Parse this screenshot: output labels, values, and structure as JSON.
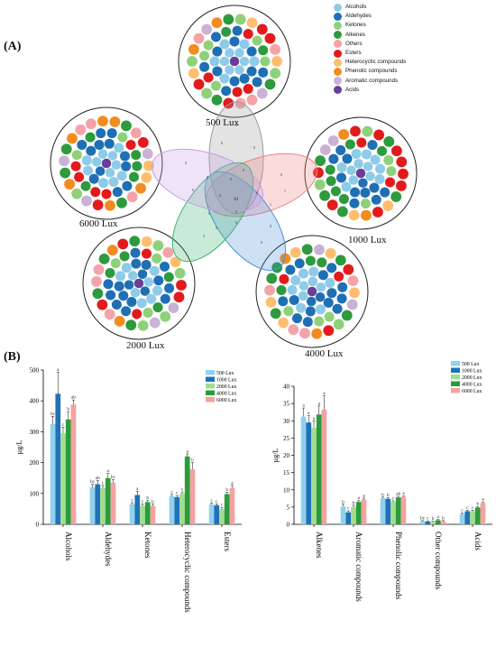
{
  "panel_a_label": "(A)",
  "panel_b_label": "(B)",
  "legend_a": [
    {
      "name": "Alcohols",
      "color": "#8ecbe8"
    },
    {
      "name": "Aldehydes",
      "color": "#1f6fb4"
    },
    {
      "name": "Ketones",
      "color": "#8fd17a"
    },
    {
      "name": "Alkenes",
      "color": "#2e9a3e"
    },
    {
      "name": "Others",
      "color": "#f4a3a8"
    },
    {
      "name": "Esters",
      "color": "#e31a1c"
    },
    {
      "name": "Heterocyclic compounds",
      "color": "#fdbf6f"
    },
    {
      "name": "Phenolic compounds",
      "color": "#f28c1e"
    },
    {
      "name": "Aromatic compounds",
      "color": "#cab2d6"
    },
    {
      "name": "Acids",
      "color": "#6a3d9a"
    }
  ],
  "clusters": [
    {
      "label": "500 Lux"
    },
    {
      "label": "1000 Lux"
    },
    {
      "label": "4000 Lux"
    },
    {
      "label": "2000 Lux"
    },
    {
      "label": "6000 Lux"
    }
  ],
  "venn": {
    "center": "61",
    "numbers": [
      "0",
      "1",
      "0",
      "3",
      "2",
      "0",
      "1",
      "0",
      "0",
      "0",
      "0",
      "0",
      "0",
      "0",
      "0",
      "0",
      "0",
      "0",
      "0",
      "0"
    ]
  },
  "chart_data": [
    {
      "type": "bar",
      "ylabel": "µg/L",
      "ylim": [
        0,
        500
      ],
      "yticks": [
        0,
        100,
        200,
        300,
        400,
        500
      ],
      "categories": [
        "Alcohols",
        "Aldehydes",
        "Ketones",
        "Heterocyclic compounds",
        "Esters"
      ],
      "series": [
        {
          "name": "500 Lux",
          "color": "#92d0ec",
          "values": [
            325,
            120,
            65,
            92,
            65
          ],
          "errors": [
            25,
            10,
            5,
            5,
            4
          ],
          "letters": [
            "bc",
            "bc",
            "c",
            "c",
            "c"
          ]
        },
        {
          "name": "1000 Lux",
          "color": "#1f72b8",
          "values": [
            423,
            130,
            95,
            88,
            62
          ],
          "errors": [
            70,
            12,
            12,
            5,
            4
          ],
          "letters": [
            "a",
            "ab",
            "a",
            "c",
            "c"
          ]
        },
        {
          "name": "2000 Lux",
          "color": "#a3dc8f",
          "values": [
            295,
            118,
            60,
            100,
            50
          ],
          "errors": [
            20,
            8,
            6,
            5,
            5
          ],
          "letters": [
            "c",
            "c",
            "c",
            "c",
            "c"
          ]
        },
        {
          "name": "4000 Lux",
          "color": "#2a9d3a",
          "values": [
            340,
            150,
            72,
            220,
            98
          ],
          "errors": [
            25,
            15,
            6,
            8,
            6
          ],
          "letters": [
            "b",
            "a",
            "b",
            "a",
            "b"
          ]
        },
        {
          "name": "6000 Lux",
          "color": "#f4a1a1",
          "values": [
            388,
            135,
            60,
            178,
            118
          ],
          "errors": [
            15,
            10,
            5,
            22,
            8
          ],
          "letters": [
            "ab",
            "bc",
            "b",
            "b",
            "a"
          ]
        }
      ]
    },
    {
      "type": "bar",
      "ylabel": "µg/L",
      "ylim": [
        0,
        40
      ],
      "yticks": [
        0,
        5,
        10,
        15,
        20,
        25,
        30,
        35,
        40
      ],
      "categories": [
        "Alkenes",
        "Aromatic compounds",
        "Phenolic compounds",
        "Other  compounds",
        "Acids"
      ],
      "series": [
        {
          "name": "500 Lux",
          "color": "#92d0ec",
          "values": [
            31.2,
            5.2,
            7.6,
            0.9,
            3.0
          ],
          "errors": [
            2.5,
            0.6,
            0.3,
            0.2,
            0.3
          ],
          "letters": [
            "a",
            "b",
            "b",
            "bc",
            "c"
          ]
        },
        {
          "name": "1000 Lux",
          "color": "#1f72b8",
          "values": [
            29.5,
            3.5,
            7.4,
            0.8,
            3.8
          ],
          "errors": [
            2.0,
            0.4,
            0.3,
            0.2,
            0.3
          ],
          "letters": [
            "a",
            "c",
            "b",
            "c",
            "c"
          ]
        },
        {
          "name": "2000 Lux",
          "color": "#a3dc8f",
          "values": [
            28.0,
            5.0,
            6.5,
            0.7,
            3.8
          ],
          "errors": [
            2.0,
            0.5,
            0.3,
            0.2,
            0.3
          ],
          "letters": [
            "a",
            "b",
            "c",
            "b",
            "c"
          ]
        },
        {
          "name": "4000 Lux",
          "color": "#2a9d3a",
          "values": [
            31.8,
            6.5,
            7.8,
            1.2,
            4.9
          ],
          "errors": [
            2.5,
            0.4,
            0.3,
            0.2,
            0.3
          ],
          "letters": [
            "a",
            "a",
            "ab",
            "a",
            "b"
          ]
        },
        {
          "name": "6000 Lux",
          "color": "#f4a1a1",
          "values": [
            33.2,
            7.2,
            8.0,
            0.9,
            6.2
          ],
          "errors": [
            4.0,
            0.4,
            0.2,
            0.2,
            0.3
          ],
          "letters": [
            "a",
            "a",
            "a",
            "b",
            "a"
          ]
        }
      ]
    }
  ]
}
